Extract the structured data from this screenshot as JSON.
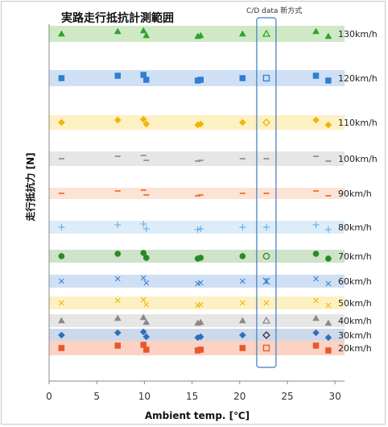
{
  "chart_data": {
    "type": "scatter",
    "title": "実路走行抵抗計測範囲",
    "xlabel": "Ambient temp. [℃]",
    "ylabel": "走行抵抗力 [N]",
    "xlim": [
      0,
      31
    ],
    "x_ticks": [
      "0",
      "5",
      "10",
      "15",
      "20",
      "25",
      "30"
    ],
    "grid": false,
    "annotation": "C/D data 新方式",
    "cd_x": 22.8,
    "series": [
      {
        "name": "130km/h",
        "color": "#2fa32f",
        "band": "#cfe9c6",
        "marker": "triangle",
        "x": [
          1.3,
          7.2,
          9.9,
          10.2,
          15.6,
          15.9,
          20.3,
          28.0,
          29.3
        ],
        "cd": "triangle"
      },
      {
        "name": "120km/h",
        "color": "#2f7fd1",
        "band": "#cfe0f4",
        "marker": "square",
        "x": [
          1.3,
          7.2,
          9.9,
          10.2,
          15.6,
          15.9,
          20.3,
          28.0,
          29.3
        ],
        "cd": "square"
      },
      {
        "name": "110km/h",
        "color": "#f2b400",
        "band": "#fdf0c2",
        "marker": "diamond",
        "x": [
          1.3,
          7.2,
          9.9,
          10.2,
          15.6,
          15.9,
          20.3,
          28.0,
          29.3
        ],
        "cd": "diamond"
      },
      {
        "name": "100km/h",
        "color": "#9a9a9a",
        "band": "#e6e6e6",
        "marker": "dash",
        "x": [
          1.3,
          7.2,
          9.9,
          10.2,
          15.6,
          15.9,
          20.3,
          28.0,
          29.3
        ],
        "cd": "dash"
      },
      {
        "name": "90km/h",
        "color": "#f07a3a",
        "band": "#fde3d6",
        "marker": "dash",
        "x": [
          1.3,
          7.2,
          9.9,
          10.2,
          15.6,
          15.9,
          20.3,
          28.0,
          29.3
        ],
        "cd": "dash"
      },
      {
        "name": "80km/h",
        "color": "#5aa9e6",
        "band": "#dcecf8",
        "marker": "plus",
        "x": [
          1.3,
          7.2,
          9.9,
          10.2,
          15.6,
          15.9,
          20.3,
          28.0,
          29.3
        ],
        "cd": "plus"
      },
      {
        "name": "70km/h",
        "color": "#2a8a2a",
        "band": "#cfe3c8",
        "marker": "circle",
        "x": [
          1.3,
          7.2,
          9.9,
          10.2,
          15.6,
          15.9,
          20.3,
          28.0,
          29.3
        ],
        "cd": "circle"
      },
      {
        "name": "60km/h",
        "color": "#2f7fd1",
        "band": "#cfe0f4",
        "marker": "x",
        "x": [
          1.3,
          7.2,
          9.9,
          10.2,
          15.6,
          15.9,
          20.3,
          28.0,
          29.3
        ],
        "cd": "star"
      },
      {
        "name": "50km/h",
        "color": "#f2b400",
        "band": "#fdf0c2",
        "marker": "x",
        "x": [
          1.3,
          7.2,
          9.9,
          10.2,
          15.6,
          15.9,
          20.3,
          28.0,
          29.3
        ],
        "cd": "x"
      },
      {
        "name": "40km/h",
        "color": "#8a8a8a",
        "band": "#e6e6e6",
        "marker": "triangle",
        "x": [
          1.3,
          7.2,
          9.9,
          10.2,
          15.6,
          15.9,
          20.3,
          28.0,
          29.3
        ],
        "cd": "triangle"
      },
      {
        "name": "30km/h",
        "color": "#2f6fb8",
        "band": "#cdd9ea",
        "marker": "diamond",
        "x": [
          1.3,
          7.2,
          9.9,
          10.2,
          15.6,
          15.9,
          20.3,
          28.0,
          29.3
        ],
        "cd": "diamond-dark"
      },
      {
        "name": "20km/h",
        "color": "#e8582a",
        "band": "#fbd2c4",
        "marker": "square",
        "x": [
          1.3,
          7.2,
          9.9,
          10.2,
          15.6,
          15.9,
          20.3,
          28.0,
          29.3
        ],
        "cd": "square"
      }
    ]
  }
}
